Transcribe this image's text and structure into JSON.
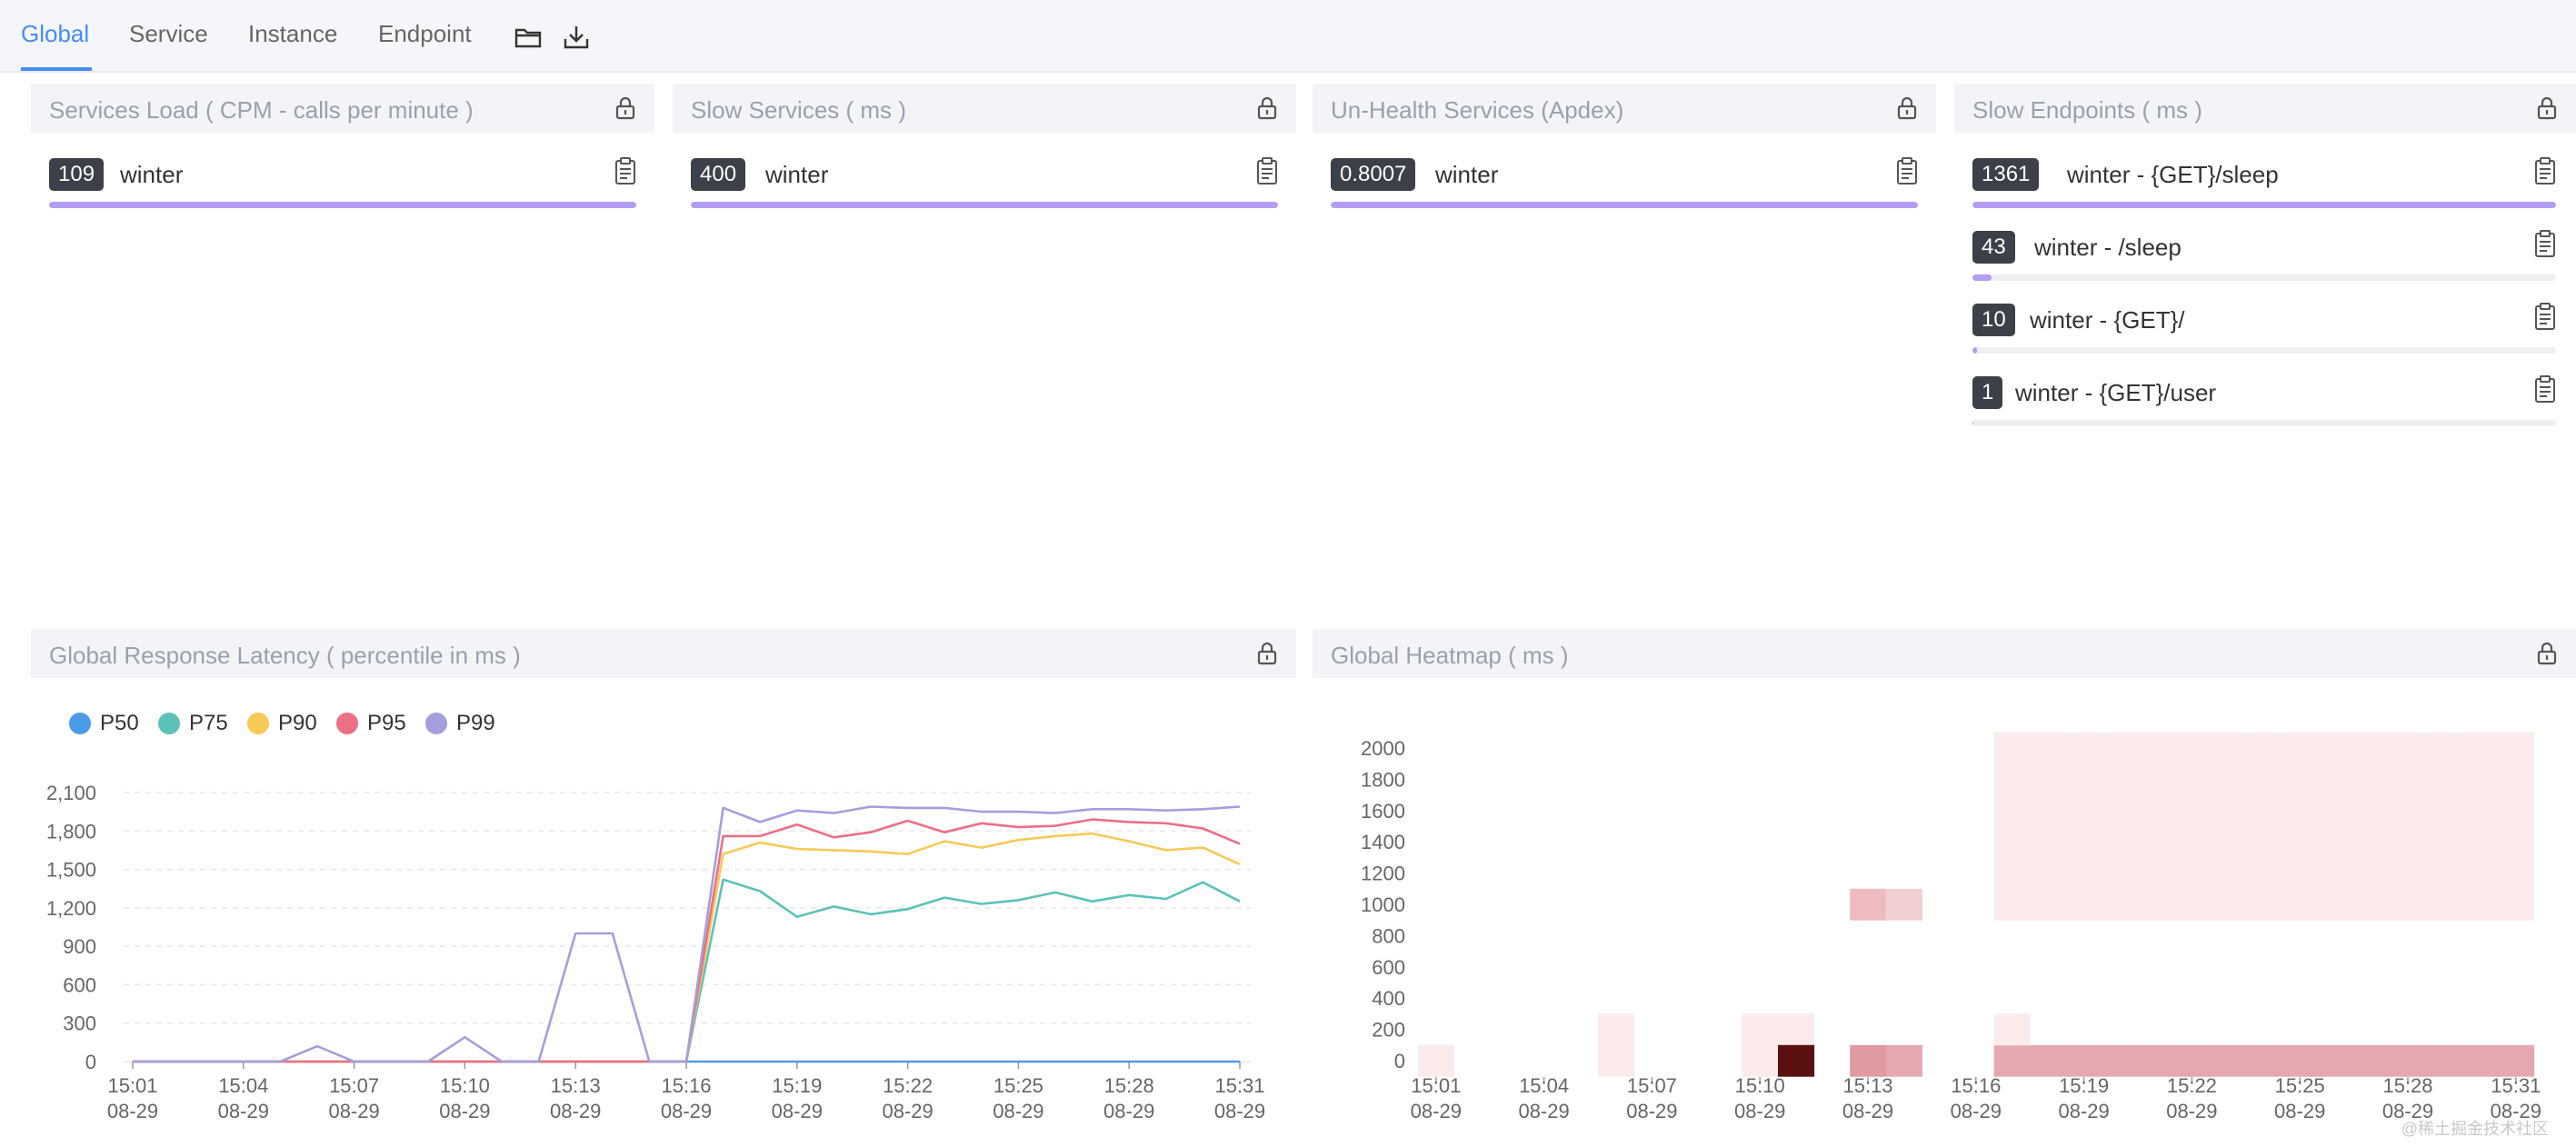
{
  "tabs": [
    {
      "label": "Global",
      "active": true
    },
    {
      "label": "Service",
      "active": false
    },
    {
      "label": "Instance",
      "active": false
    },
    {
      "label": "Endpoint",
      "active": false
    }
  ],
  "toolbar": {
    "folder_icon": "folder-icon",
    "download_icon": "download-icon"
  },
  "colors": {
    "accent": "#448dfe",
    "bar": "#b39cf2",
    "badge": "#3c4048",
    "p50": "#4b9ae8",
    "p75": "#5bc2b8",
    "p90": "#f7c957",
    "p95": "#ec6f86",
    "p99": "#a49fdc"
  },
  "panels": {
    "services_load": {
      "title": "Services Load ( CPM - calls per minute )",
      "items": [
        {
          "value": "109",
          "label": "winter",
          "fill": 1.0
        }
      ]
    },
    "slow_services": {
      "title": "Slow Services ( ms )",
      "items": [
        {
          "value": "400",
          "label": "winter",
          "fill": 1.0
        }
      ]
    },
    "unhealth_services": {
      "title": "Un-Health Services (Apdex)",
      "items": [
        {
          "value": "0.8007",
          "label": "winter",
          "fill": 1.0
        }
      ]
    },
    "slow_endpoints": {
      "title": "Slow Endpoints ( ms )",
      "items": [
        {
          "value": "1361",
          "label": "winter - {GET}/sleep",
          "fill": 1.0
        },
        {
          "value": "43",
          "label": "winter - /sleep",
          "fill": 0.032
        },
        {
          "value": "10",
          "label": "winter - {GET}/",
          "fill": 0.008
        },
        {
          "value": "1",
          "label": "winter - {GET}/user",
          "fill": 0.002
        }
      ]
    },
    "latency": {
      "title": "Global Response Latency ( percentile in ms )"
    },
    "heatmap": {
      "title": "Global Heatmap ( ms )"
    }
  },
  "watermark": "@稀土掘金技术社区",
  "chart_data": [
    {
      "type": "line",
      "title": "Global Response Latency ( percentile in ms )",
      "x": [
        "15:01",
        "15:02",
        "15:03",
        "15:04",
        "15:05",
        "15:06",
        "15:07",
        "15:08",
        "15:09",
        "15:10",
        "15:11",
        "15:12",
        "15:13",
        "15:14",
        "15:15",
        "15:16",
        "15:17",
        "15:18",
        "15:19",
        "15:20",
        "15:21",
        "15:22",
        "15:23",
        "15:24",
        "15:25",
        "15:26",
        "15:27",
        "15:28",
        "15:29",
        "15:30",
        "15:31"
      ],
      "x_tick_labels": [
        [
          "15:01",
          "08-29"
        ],
        [
          "15:04",
          "08-29"
        ],
        [
          "15:07",
          "08-29"
        ],
        [
          "15:10",
          "08-29"
        ],
        [
          "15:13",
          "08-29"
        ],
        [
          "15:16",
          "08-29"
        ],
        [
          "15:19",
          "08-29"
        ],
        [
          "15:22",
          "08-29"
        ],
        [
          "15:25",
          "08-29"
        ],
        [
          "15:28",
          "08-29"
        ],
        [
          "15:31",
          "08-29"
        ]
      ],
      "y_ticks": [
        "0",
        "300",
        "600",
        "900",
        "1,200",
        "1,500",
        "1,800",
        "2,100"
      ],
      "ylim": [
        0,
        2100
      ],
      "grid": true,
      "legend": "top-left",
      "series": [
        {
          "name": "P50",
          "values": [
            0,
            0,
            0,
            0,
            0,
            0,
            0,
            0,
            0,
            0,
            0,
            0,
            0,
            0,
            0,
            0,
            0,
            0,
            0,
            0,
            0,
            0,
            0,
            0,
            0,
            0,
            0,
            0,
            0,
            0,
            0
          ]
        },
        {
          "name": "P75",
          "values": [
            0,
            0,
            0,
            0,
            0,
            0,
            0,
            0,
            0,
            0,
            0,
            0,
            0,
            0,
            0,
            0,
            1420,
            1330,
            1130,
            1210,
            1150,
            1190,
            1280,
            1230,
            1260,
            1320,
            1250,
            1300,
            1270,
            1400,
            1250
          ]
        },
        {
          "name": "P90",
          "values": [
            0,
            0,
            0,
            0,
            0,
            0,
            0,
            0,
            0,
            0,
            0,
            0,
            0,
            0,
            0,
            0,
            1620,
            1710,
            1660,
            1650,
            1640,
            1620,
            1720,
            1670,
            1730,
            1760,
            1780,
            1720,
            1650,
            1670,
            1540
          ]
        },
        {
          "name": "P95",
          "values": [
            0,
            0,
            0,
            0,
            0,
            0,
            0,
            0,
            0,
            0,
            0,
            0,
            0,
            0,
            0,
            0,
            1760,
            1760,
            1850,
            1750,
            1790,
            1880,
            1790,
            1860,
            1830,
            1840,
            1890,
            1870,
            1860,
            1820,
            1700
          ]
        },
        {
          "name": "P99",
          "values": [
            0,
            0,
            0,
            0,
            0,
            120,
            0,
            0,
            0,
            190,
            0,
            0,
            1000,
            1000,
            0,
            0,
            1980,
            1870,
            1960,
            1940,
            1990,
            1980,
            1980,
            1950,
            1950,
            1940,
            1970,
            1970,
            1960,
            1970,
            1990
          ]
        }
      ]
    },
    {
      "type": "heatmap",
      "title": "Global Heatmap ( ms )",
      "x_tick_labels": [
        [
          "15:01",
          "08-29"
        ],
        [
          "15:04",
          "08-29"
        ],
        [
          "15:07",
          "08-29"
        ],
        [
          "15:10",
          "08-29"
        ],
        [
          "15:13",
          "08-29"
        ],
        [
          "15:16",
          "08-29"
        ],
        [
          "15:19",
          "08-29"
        ],
        [
          "15:22",
          "08-29"
        ],
        [
          "15:25",
          "08-29"
        ],
        [
          "15:28",
          "08-29"
        ],
        [
          "15:31",
          "08-29"
        ]
      ],
      "y_ticks": [
        "0",
        "200",
        "400",
        "600",
        "800",
        "1000",
        "1200",
        "1400",
        "1600",
        "1800",
        "2000"
      ],
      "columns": 31,
      "cells": [
        {
          "col": 0,
          "row": 0,
          "v": 0.08
        },
        {
          "col": 5,
          "row": 0,
          "v": 0.1
        },
        {
          "col": 5,
          "row": 1,
          "v": 0.1
        },
        {
          "col": 9,
          "row": 0,
          "v": 0.1
        },
        {
          "col": 9,
          "row": 1,
          "v": 0.1
        },
        {
          "col": 10,
          "row": 1,
          "v": 0.1
        },
        {
          "col": 10,
          "row": 0,
          "v": 1.0
        },
        {
          "col": 12,
          "row": 0,
          "v": 0.5
        },
        {
          "col": 13,
          "row": 0,
          "v": 0.4
        },
        {
          "col": 12,
          "row": 5,
          "v": 0.3
        },
        {
          "col": 13,
          "row": 5,
          "v": 0.25
        },
        {
          "col": 16,
          "row": 1,
          "v": 0.1
        }
      ],
      "band": {
        "from_col": 16,
        "to_col": 30,
        "row0_v": 0.4,
        "upper_v": 0.08,
        "upper_rows": [
          5,
          10
        ]
      }
    }
  ]
}
